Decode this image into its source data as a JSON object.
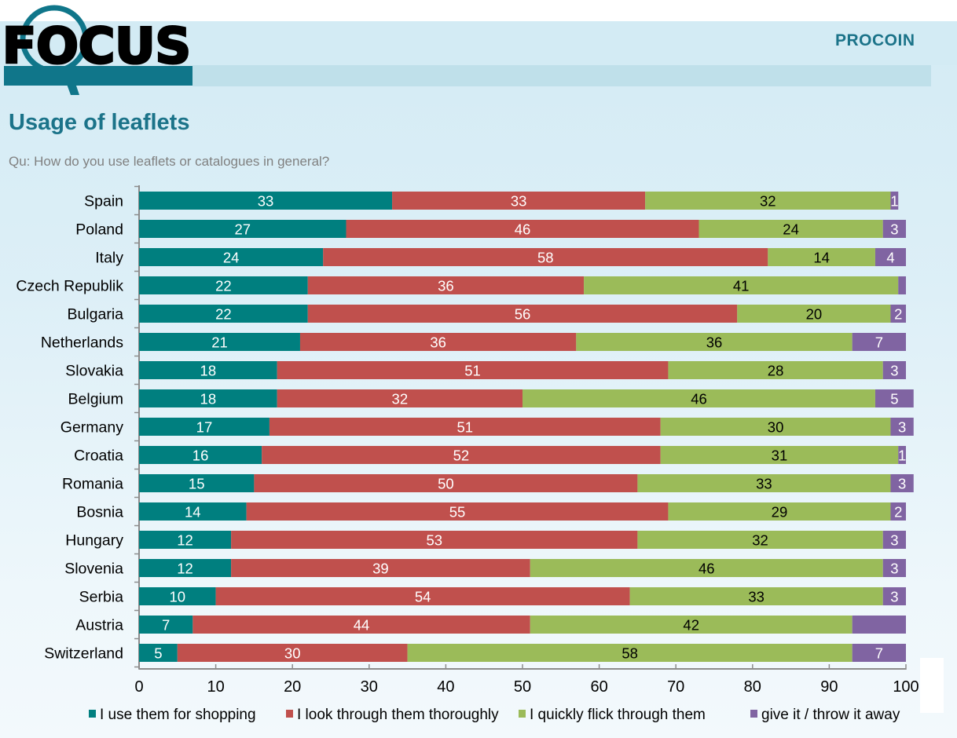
{
  "header": {
    "logo_text": "FOCUS",
    "brand": "PROCOIN",
    "title": "Usage of leaflets",
    "subtitle": "Qu: How do you use leaflets or catalogues in general?"
  },
  "colors": {
    "shopping": "#007f7f",
    "thoroughly": "#c0504d",
    "flick": "#9bbb59",
    "throw_away": "#8064a2",
    "brand": "#1b7389"
  },
  "chart_data": {
    "type": "bar",
    "orientation": "horizontal",
    "stacked": true,
    "title": "Usage of leaflets",
    "subtitle": "Qu: How do you use leaflets or catalogues in general?",
    "xlabel": "",
    "ylabel": "",
    "xlim": [
      0,
      100
    ],
    "xticks": [
      0,
      10,
      20,
      30,
      40,
      50,
      60,
      70,
      80,
      90,
      100
    ],
    "grid": false,
    "legend_position": "bottom",
    "categories": [
      "Spain",
      "Poland",
      "Italy",
      "Czech Republik",
      "Bulgaria",
      "Netherlands",
      "Slovakia",
      "Belgium",
      "Germany",
      "Croatia",
      "Romania",
      "Bosnia",
      "Hungary",
      "Slovenia",
      "Serbia",
      "Austria",
      "Switzerland"
    ],
    "series": [
      {
        "name": "I use them for shopping",
        "color": "#007f7f",
        "label_color": "#ffffff",
        "values": [
          33,
          27,
          24,
          22,
          22,
          21,
          18,
          18,
          17,
          16,
          15,
          14,
          12,
          12,
          10,
          7,
          5
        ]
      },
      {
        "name": "I look through them thoroughly",
        "color": "#c0504d",
        "label_color": "#ffffff",
        "values": [
          33,
          46,
          58,
          36,
          56,
          36,
          51,
          32,
          51,
          52,
          50,
          55,
          53,
          39,
          54,
          44,
          30
        ]
      },
      {
        "name": "I quickly flick through them",
        "color": "#9bbb59",
        "label_color": "#000000",
        "values": [
          32,
          24,
          14,
          41,
          20,
          36,
          28,
          46,
          30,
          31,
          33,
          29,
          32,
          46,
          33,
          42,
          58
        ]
      },
      {
        "name": "give it / throw it away",
        "color": "#8064a2",
        "label_color": "#ffffff",
        "values": [
          1,
          3,
          4,
          1,
          2,
          7,
          3,
          5,
          3,
          1,
          3,
          2,
          3,
          3,
          3,
          7,
          7
        ],
        "label_shown": [
          true,
          true,
          true,
          false,
          true,
          true,
          true,
          true,
          true,
          true,
          true,
          true,
          true,
          true,
          true,
          false,
          true
        ]
      }
    ]
  }
}
